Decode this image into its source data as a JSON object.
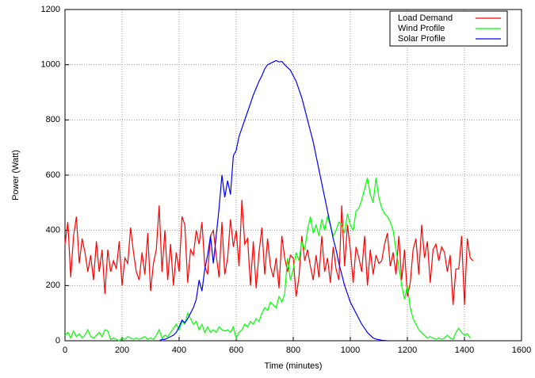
{
  "chart_data": {
    "type": "line",
    "xlabel": "Time (minutes)",
    "ylabel": "Power (Watt)",
    "xlim": [
      0,
      1600
    ],
    "ylim": [
      0,
      1200
    ],
    "xticks": [
      0,
      200,
      400,
      600,
      800,
      1000,
      1200,
      1400,
      1600
    ],
    "yticks": [
      0,
      200,
      400,
      600,
      800,
      1000,
      1200
    ],
    "grid": true,
    "legend": "top-right",
    "x": [
      0,
      10,
      20,
      30,
      40,
      50,
      60,
      70,
      80,
      90,
      100,
      110,
      120,
      130,
      140,
      150,
      160,
      170,
      180,
      190,
      200,
      210,
      220,
      230,
      240,
      250,
      260,
      270,
      280,
      290,
      300,
      310,
      320,
      330,
      340,
      350,
      360,
      370,
      380,
      390,
      400,
      410,
      420,
      430,
      440,
      450,
      460,
      470,
      480,
      490,
      500,
      510,
      520,
      530,
      540,
      550,
      560,
      570,
      580,
      590,
      600,
      610,
      620,
      630,
      640,
      650,
      660,
      670,
      680,
      690,
      700,
      710,
      720,
      730,
      740,
      750,
      760,
      770,
      780,
      790,
      800,
      810,
      820,
      830,
      840,
      850,
      860,
      870,
      880,
      890,
      900,
      910,
      920,
      930,
      940,
      950,
      960,
      970,
      980,
      990,
      1000,
      1010,
      1020,
      1030,
      1040,
      1050,
      1060,
      1070,
      1080,
      1090,
      1100,
      1110,
      1120,
      1130,
      1140,
      1150,
      1160,
      1170,
      1180,
      1190,
      1200,
      1210,
      1220,
      1230,
      1240,
      1250,
      1260,
      1270,
      1280,
      1290,
      1300,
      1310,
      1320,
      1330,
      1340,
      1350,
      1360,
      1370,
      1380,
      1390,
      1400,
      1410,
      1420,
      1430
    ],
    "series": [
      {
        "name": "Load Demand",
        "color": "#ff0000",
        "values": [
          350,
          430,
          230,
          380,
          450,
          280,
          370,
          320,
          250,
          310,
          220,
          360,
          250,
          330,
          170,
          330,
          250,
          290,
          260,
          360,
          200,
          300,
          280,
          410,
          320,
          250,
          220,
          320,
          240,
          390,
          180,
          280,
          330,
          490,
          250,
          400,
          220,
          350,
          200,
          320,
          250,
          450,
          420,
          210,
          330,
          310,
          400,
          350,
          430,
          270,
          240,
          380,
          400,
          310,
          230,
          430,
          240,
          300,
          440,
          340,
          400,
          270,
          510,
          350,
          370,
          200,
          360,
          190,
          320,
          410,
          240,
          370,
          270,
          230,
          300,
          190,
          380,
          300,
          250,
          310,
          300,
          160,
          230,
          380,
          290,
          330,
          270,
          220,
          310,
          230,
          380,
          250,
          300,
          210,
          340,
          260,
          220,
          490,
          270,
          420,
          330,
          210,
          340,
          300,
          250,
          380,
          200,
          330,
          240,
          310,
          280,
          290,
          350,
          390,
          270,
          320,
          240,
          380,
          220,
          330,
          160,
          210,
          330,
          370,
          240,
          420,
          300,
          360,
          210,
          330,
          350,
          290,
          340,
          320,
          250,
          310,
          130,
          260,
          260,
          380,
          130,
          370,
          300,
          290
        ]
      },
      {
        "name": "Wind Profile",
        "color": "#00ff00",
        "values": [
          20,
          30,
          10,
          35,
          15,
          25,
          10,
          20,
          40,
          15,
          10,
          20,
          30,
          15,
          40,
          35,
          5,
          10,
          5,
          0,
          10,
          5,
          15,
          10,
          5,
          10,
          5,
          10,
          15,
          5,
          10,
          5,
          20,
          40,
          10,
          20,
          15,
          30,
          45,
          60,
          40,
          70,
          60,
          100,
          80,
          60,
          70,
          40,
          60,
          30,
          50,
          30,
          40,
          30,
          50,
          40,
          35,
          40,
          30,
          50,
          10,
          30,
          40,
          60,
          50,
          70,
          60,
          80,
          70,
          100,
          120,
          110,
          140,
          130,
          120,
          160,
          140,
          170,
          300,
          220,
          260,
          320,
          290,
          360,
          330,
          400,
          450,
          390,
          420,
          380,
          440,
          400,
          450,
          420,
          380,
          400,
          430,
          420,
          390,
          460,
          420,
          400,
          470,
          480,
          510,
          550,
          590,
          530,
          500,
          590,
          520,
          480,
          460,
          450,
          430,
          400,
          330,
          270,
          200,
          150,
          200,
          120,
          80,
          60,
          40,
          30,
          20,
          10,
          15,
          10,
          5,
          10,
          5,
          10,
          20,
          10,
          5,
          30,
          45,
          30,
          20,
          25,
          10,
          null
        ]
      },
      {
        "name": "Solar Profile",
        "color": "#0000ff",
        "values": [
          null,
          null,
          null,
          null,
          null,
          null,
          null,
          null,
          null,
          null,
          null,
          null,
          null,
          null,
          null,
          null,
          null,
          null,
          null,
          null,
          null,
          null,
          null,
          null,
          null,
          null,
          null,
          null,
          null,
          null,
          null,
          null,
          null,
          0,
          5,
          5,
          10,
          15,
          20,
          30,
          50,
          75,
          65,
          80,
          100,
          120,
          150,
          220,
          180,
          260,
          310,
          380,
          280,
          380,
          480,
          600,
          520,
          580,
          530,
          670,
          690,
          740,
          770,
          800,
          830,
          860,
          890,
          915,
          940,
          960,
          985,
          1000,
          1005,
          1010,
          1015,
          1010,
          1012,
          1000,
          990,
          980,
          960,
          940,
          910,
          880,
          840,
          800,
          760,
          720,
          670,
          620,
          570,
          520,
          470,
          420,
          370,
          330,
          280,
          240,
          200,
          170,
          140,
          120,
          100,
          80,
          60,
          45,
          30,
          20,
          10,
          6,
          4,
          2,
          1,
          0,
          null,
          null,
          null,
          null,
          null,
          null,
          null,
          null,
          null,
          null,
          null,
          null,
          null,
          null,
          null,
          null,
          null,
          null,
          null,
          null,
          null,
          null,
          null,
          null,
          null,
          null,
          null,
          null,
          null,
          null
        ]
      }
    ]
  }
}
